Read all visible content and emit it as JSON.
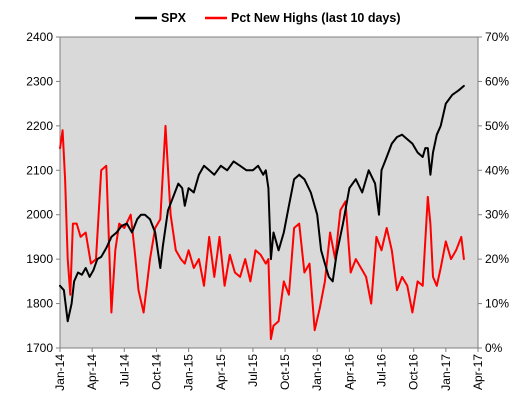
{
  "chart_data": {
    "type": "line",
    "legend_position": "top",
    "grid": false,
    "plot_background": "#d9d9d9",
    "x_ticks": [
      "Jan-14",
      "Apr-14",
      "Jul-14",
      "Oct-14",
      "Jan-15",
      "Apr-15",
      "Jul-15",
      "Oct-15",
      "Jan-16",
      "Apr-16",
      "Jul-16",
      "Oct-16",
      "Jan-17",
      "Apr-17"
    ],
    "xlim": [
      2014.0,
      2017.25
    ],
    "y_left": {
      "ticks": [
        "1700",
        "1800",
        "1900",
        "2000",
        "2100",
        "2200",
        "2300",
        "2400"
      ],
      "lim": [
        1700,
        2400
      ]
    },
    "y_right": {
      "ticks": [
        "0%",
        "10%",
        "20%",
        "30%",
        "40%",
        "50%",
        "60%",
        "70%"
      ],
      "lim": [
        0,
        70
      ]
    },
    "series": [
      {
        "name": "SPX",
        "axis": "left",
        "color": "#000000",
        "x": [
          2014.0,
          2014.03,
          2014.06,
          2014.09,
          2014.11,
          2014.14,
          2014.17,
          2014.2,
          2014.23,
          2014.26,
          2014.29,
          2014.32,
          2014.36,
          2014.4,
          2014.44,
          2014.48,
          2014.52,
          2014.56,
          2014.6,
          2014.63,
          2014.66,
          2014.7,
          2014.74,
          2014.78,
          2014.8,
          2014.84,
          2014.88,
          2014.92,
          2014.95,
          2014.97,
          2015.0,
          2015.04,
          2015.08,
          2015.12,
          2015.16,
          2015.2,
          2015.25,
          2015.3,
          2015.35,
          2015.4,
          2015.45,
          2015.5,
          2015.54,
          2015.58,
          2015.6,
          2015.62,
          2015.64,
          2015.66,
          2015.7,
          2015.74,
          2015.78,
          2015.82,
          2015.86,
          2015.9,
          2015.95,
          2016.0,
          2016.03,
          2016.06,
          2016.09,
          2016.12,
          2016.15,
          2016.2,
          2016.25,
          2016.3,
          2016.35,
          2016.4,
          2016.45,
          2016.48,
          2016.5,
          2016.54,
          2016.58,
          2016.62,
          2016.66,
          2016.7,
          2016.74,
          2016.78,
          2016.82,
          2016.84,
          2016.86,
          2016.88,
          2016.9,
          2016.93,
          2016.96,
          2017.0,
          2017.05,
          2017.1,
          2017.14
        ],
        "values": [
          1840,
          1830,
          1760,
          1800,
          1850,
          1870,
          1865,
          1880,
          1860,
          1875,
          1900,
          1905,
          1925,
          1950,
          1960,
          1975,
          1980,
          1960,
          1990,
          2000,
          2000,
          1990,
          1960,
          1880,
          1930,
          2010,
          2040,
          2070,
          2060,
          2020,
          2060,
          2050,
          2090,
          2110,
          2100,
          2090,
          2110,
          2100,
          2120,
          2110,
          2100,
          2100,
          2110,
          2090,
          2100,
          2060,
          1900,
          1960,
          1920,
          1960,
          2020,
          2080,
          2090,
          2080,
          2050,
          2000,
          1920,
          1890,
          1860,
          1850,
          1910,
          1980,
          2060,
          2080,
          2050,
          2100,
          2070,
          2000,
          2100,
          2130,
          2160,
          2175,
          2180,
          2170,
          2160,
          2140,
          2130,
          2150,
          2150,
          2090,
          2140,
          2180,
          2200,
          2250,
          2270,
          2280,
          2290
        ]
      },
      {
        "name": "Pct New Highs (last 10 days)",
        "axis": "right",
        "color": "#ff0000",
        "x": [
          2014.0,
          2014.02,
          2014.04,
          2014.06,
          2014.08,
          2014.1,
          2014.13,
          2014.16,
          2014.2,
          2014.24,
          2014.28,
          2014.32,
          2014.36,
          2014.4,
          2014.43,
          2014.46,
          2014.5,
          2014.55,
          2014.58,
          2014.61,
          2014.65,
          2014.7,
          2014.74,
          2014.78,
          2014.82,
          2014.86,
          2014.9,
          2014.94,
          2014.97,
          2015.0,
          2015.04,
          2015.08,
          2015.12,
          2015.16,
          2015.2,
          2015.24,
          2015.28,
          2015.32,
          2015.36,
          2015.4,
          2015.44,
          2015.48,
          2015.52,
          2015.56,
          2015.6,
          2015.62,
          2015.64,
          2015.66,
          2015.7,
          2015.74,
          2015.78,
          2015.82,
          2015.86,
          2015.9,
          2015.94,
          2015.98,
          2016.02,
          2016.06,
          2016.1,
          2016.14,
          2016.18,
          2016.22,
          2016.26,
          2016.3,
          2016.34,
          2016.38,
          2016.42,
          2016.46,
          2016.5,
          2016.54,
          2016.58,
          2016.62,
          2016.66,
          2016.7,
          2016.74,
          2016.78,
          2016.82,
          2016.86,
          2016.88,
          2016.9,
          2016.93,
          2016.96,
          2017.0,
          2017.04,
          2017.08,
          2017.12,
          2017.14
        ],
        "values": [
          45,
          49,
          38,
          20,
          12,
          28,
          28,
          25,
          26,
          19,
          20,
          40,
          41,
          8,
          22,
          28,
          27,
          30,
          22,
          13,
          8,
          20,
          27,
          29,
          50,
          30,
          22,
          20,
          19,
          22,
          18,
          20,
          14,
          25,
          16,
          25,
          14,
          21,
          17,
          16,
          20,
          15,
          22,
          21,
          19,
          20,
          2,
          5,
          6,
          15,
          12,
          27,
          28,
          17,
          19,
          4,
          9,
          15,
          26,
          20,
          31,
          33,
          17,
          20,
          18,
          16,
          10,
          25,
          22,
          27,
          22,
          13,
          16,
          14,
          8,
          15,
          14,
          34,
          28,
          16,
          14,
          18,
          24,
          20,
          22,
          25,
          20
        ]
      }
    ]
  }
}
